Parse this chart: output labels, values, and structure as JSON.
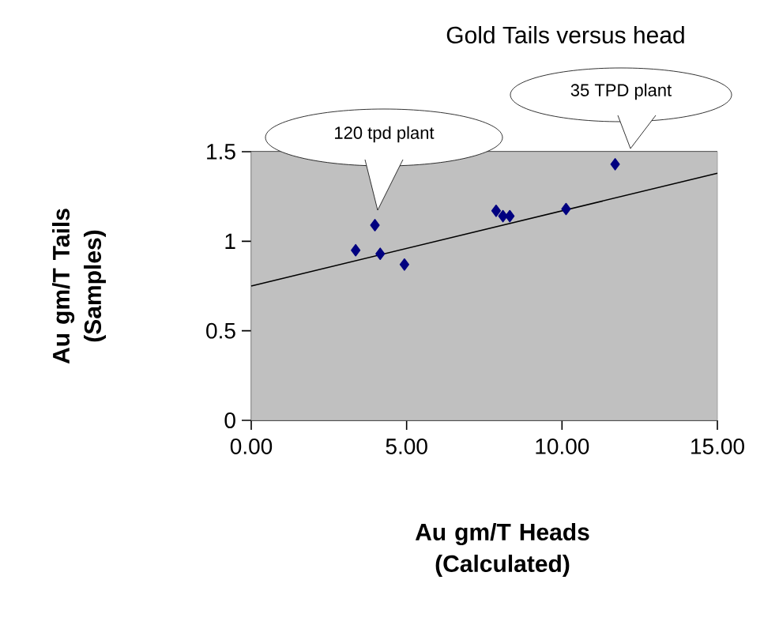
{
  "chart_data": {
    "type": "scatter",
    "title": "Gold Tails versus head",
    "xlabel": "Au  gm/T Heads (Calculated)",
    "ylabel": "Au gm/T Tails (Samples)",
    "xlim": [
      0,
      15
    ],
    "ylim": [
      0,
      1.5
    ],
    "xticks": [
      {
        "value": 0,
        "label": "0.00"
      },
      {
        "value": 5,
        "label": "5.00"
      },
      {
        "value": 10,
        "label": "10.00"
      },
      {
        "value": 15,
        "label": "15.00"
      }
    ],
    "yticks": [
      0,
      0.5,
      1,
      1.5
    ],
    "grid": "y",
    "series": [
      {
        "color": "#000080",
        "marker": "diamond",
        "x": [
          3.36,
          3.98,
          4.15,
          4.93,
          7.88,
          8.1,
          8.32,
          10.13,
          11.71
        ],
        "values": [
          0.95,
          1.09,
          0.93,
          0.87,
          1.17,
          1.14,
          1.14,
          1.18,
          1.43
        ]
      },
      {
        "type": "line",
        "color": "#000000",
        "marker": "none",
        "x": [
          0,
          15
        ],
        "values": [
          0.75,
          1.38
        ]
      }
    ],
    "annotations": [
      "120 tpd plant",
      "35 TPD plant"
    ]
  }
}
